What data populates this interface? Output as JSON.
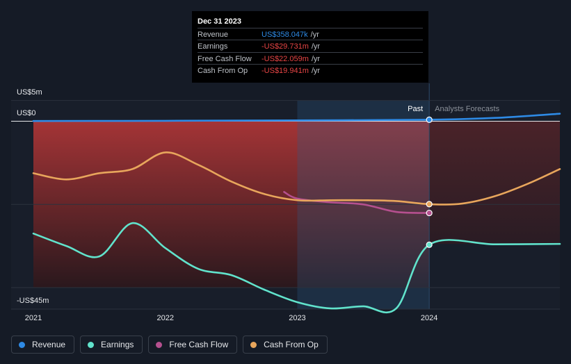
{
  "tooltip": {
    "date": "Dec 31 2023",
    "rows": [
      {
        "label": "Revenue",
        "value": "US$358.047k",
        "unit": "/yr",
        "color": "#2e8ae5"
      },
      {
        "label": "Earnings",
        "value": "-US$29.731m",
        "unit": "/yr",
        "color": "#e84545"
      },
      {
        "label": "Free Cash Flow",
        "value": "-US$22.059m",
        "unit": "/yr",
        "color": "#e84545"
      },
      {
        "label": "Cash From Op",
        "value": "-US$19.941m",
        "unit": "/yr",
        "color": "#e84545"
      }
    ]
  },
  "regions": {
    "past": "Past",
    "forecast": "Analysts Forecasts"
  },
  "legend": [
    {
      "name": "Revenue",
      "color": "#2e8ae5"
    },
    {
      "name": "Earnings",
      "color": "#61e3cc"
    },
    {
      "name": "Free Cash Flow",
      "color": "#b5508f"
    },
    {
      "name": "Cash From Op",
      "color": "#e8a65c"
    }
  ],
  "chart_data": {
    "type": "line",
    "y_tick_labels": [
      "US$5m",
      "US$0",
      "-US$45m"
    ],
    "y_ticks": [
      5,
      0,
      -45
    ],
    "ylim": [
      -45,
      5
    ],
    "x_tick_labels": [
      "2021",
      "2022",
      "2023",
      "2024"
    ],
    "x_ticks": [
      2021,
      2022,
      2023,
      2024
    ],
    "xlim": [
      2021,
      2024.99
    ],
    "past_end": 2024.0,
    "highlight_start": 2023.0,
    "series": [
      {
        "name": "Revenue",
        "color": "#2e8ae5",
        "x": [
          2021.0,
          2022.0,
          2023.0,
          2024.0,
          2024.5,
          2024.99
        ],
        "y": [
          0.05,
          0.1,
          0.2,
          0.36,
          0.8,
          1.8
        ]
      },
      {
        "name": "Earnings",
        "color": "#61e3cc",
        "x": [
          2021.0,
          2021.25,
          2021.5,
          2021.75,
          2022.0,
          2022.25,
          2022.5,
          2022.75,
          2023.0,
          2023.25,
          2023.5,
          2023.75,
          2024.0,
          2024.5,
          2024.99
        ],
        "y": [
          -27.0,
          -30.0,
          -32.5,
          -24.5,
          -30.5,
          -35.5,
          -37.0,
          -40.5,
          -43.5,
          -45.0,
          -44.5,
          -45.0,
          -29.7,
          -29.6,
          -29.5
        ]
      },
      {
        "name": "Free Cash Flow",
        "color": "#b5508f",
        "x": [
          2022.9,
          2023.0,
          2023.25,
          2023.5,
          2023.75,
          2024.0
        ],
        "y": [
          -17.0,
          -18.6,
          -19.5,
          -20.0,
          -21.8,
          -22.06
        ]
      },
      {
        "name": "Cash From Op",
        "color": "#e8a65c",
        "x": [
          2021.0,
          2021.25,
          2021.5,
          2021.75,
          2022.0,
          2022.25,
          2022.5,
          2022.75,
          2023.0,
          2023.25,
          2023.5,
          2023.75,
          2024.0,
          2024.25,
          2024.5,
          2024.75,
          2024.99
        ],
        "y": [
          -12.5,
          -14.0,
          -12.5,
          -11.5,
          -7.5,
          -10.5,
          -14.5,
          -17.5,
          -19.0,
          -19.0,
          -19.0,
          -19.2,
          -19.94,
          -19.8,
          -18.0,
          -15.0,
          -11.5
        ]
      }
    ]
  }
}
